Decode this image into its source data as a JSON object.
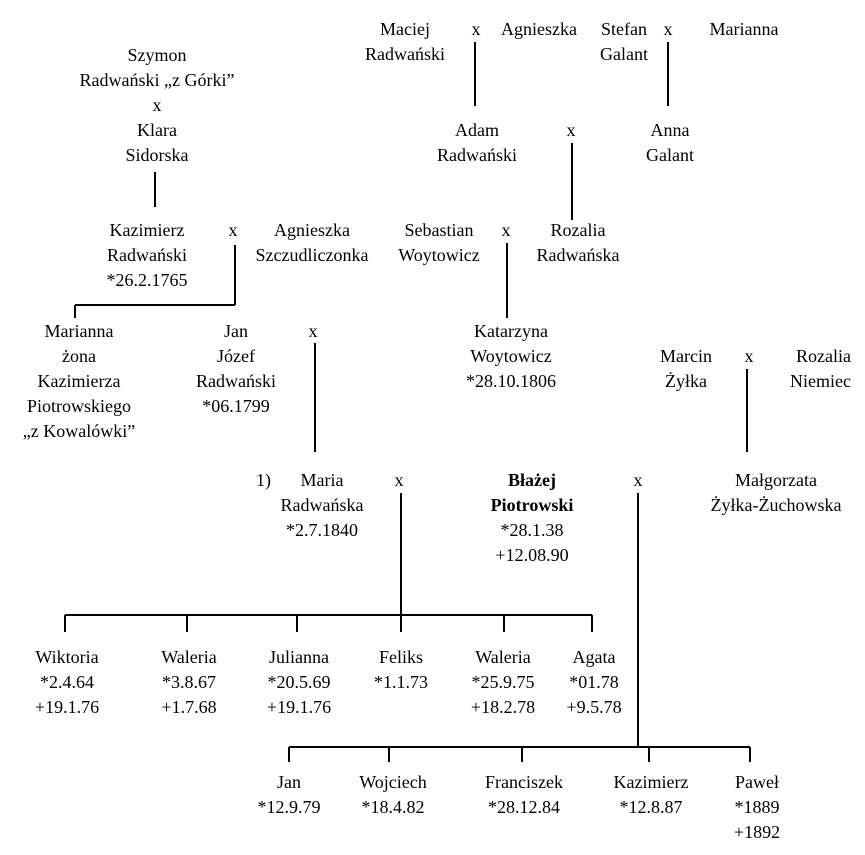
{
  "people": {
    "maciej": [
      "Maciej",
      "Radwański"
    ],
    "agnieszka_1": [
      "Agnieszka"
    ],
    "stefan": [
      "Stefan",
      "Galant"
    ],
    "marianna_1": [
      "Marianna"
    ],
    "szymon": [
      "Szymon",
      "Radwański „z Górki”",
      "x",
      "Klara",
      "Sidorska"
    ],
    "adam": [
      "Adam",
      "Radwański"
    ],
    "anna": [
      "Anna",
      "Galant"
    ],
    "kazimierz_1": [
      "Kazimierz",
      "Radwański",
      "*26.2.1765"
    ],
    "agnieszka_2": [
      "Agnieszka",
      "Szczudliczonka"
    ],
    "sebastian": [
      "Sebastian",
      "Woytowicz"
    ],
    "rozalia_1": [
      "Rozalia",
      "Radwańska"
    ],
    "marianna_2": [
      "Marianna",
      "żona",
      "Kazimierza",
      "Piotrowskiego",
      "„z Kowalówki”"
    ],
    "jan_jozef": [
      "Jan",
      "Józef",
      "Radwański",
      "*06.1799"
    ],
    "katarzyna": [
      "Katarzyna",
      "Woytowicz",
      "*28.10.1806"
    ],
    "marcin": [
      "Marcin",
      "Żyłka"
    ],
    "rozalia_2": [
      "Rozalia",
      "Niemiec"
    ],
    "maria": [
      "Maria",
      "Radwańska",
      "*2.7.1840"
    ],
    "maria_marker": "1)",
    "blazej": [
      "Błażej",
      "Piotrowski"
    ],
    "blazej_dates": [
      "*28.1.38",
      "+12.08.90"
    ],
    "malgorzata": [
      "Małgorzata",
      "Żyłka-Żuchowska"
    ],
    "wiktoria": [
      "Wiktoria",
      "*2.4.64",
      "+19.1.76"
    ],
    "waleria_1": [
      "Waleria",
      "*3.8.67",
      "+1.7.68"
    ],
    "julianna": [
      "Julianna",
      "*20.5.69",
      "+19.1.76"
    ],
    "feliks": [
      "Feliks",
      "*1.1.73"
    ],
    "waleria_2": [
      "Waleria",
      "*25.9.75",
      "+18.2.78"
    ],
    "agata": [
      "Agata",
      "*01.78",
      "+9.5.78"
    ],
    "jan_2": [
      "Jan",
      "*12.9.79"
    ],
    "wojciech": [
      "Wojciech",
      "*18.4.82"
    ],
    "franciszek": [
      "Franciszek",
      "*28.12.84"
    ],
    "kazimierz_2": [
      "Kazimierz",
      "*12.8.87"
    ],
    "pawel": [
      "Paweł",
      "*1889",
      "+1892"
    ]
  },
  "marriage_symbol": "x"
}
